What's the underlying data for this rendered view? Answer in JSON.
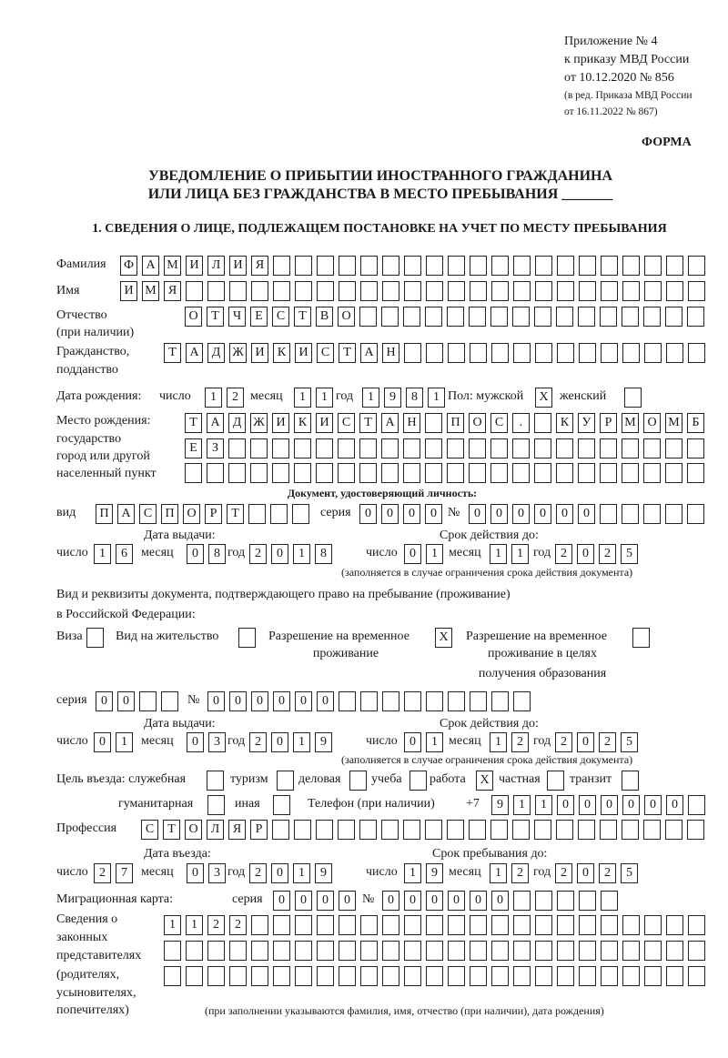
{
  "header": {
    "l1": "Приложение № 4",
    "l2": "к приказу МВД России",
    "l3": "от 10.12.2020 № 856",
    "l4": "(в ред. Приказа МВД России",
    "l5": "от 16.11.2022 № 867)",
    "forma": "ФОРМА",
    "title1": "УВЕДОМЛЕНИЕ О ПРИБЫТИИ ИНОСТРАННОГО ГРАЖДАНИНА",
    "title2": "ИЛИ ЛИЦА БЕЗ ГРАЖДАНСТВА В МЕСТО ПРЕБЫВАНИЯ _______",
    "section1": "1. СВЕДЕНИЯ О ЛИЦЕ, ПОДЛЕЖАЩЕМ ПОСТАНОВКЕ НА УЧЕТ ПО МЕСТУ ПРЕБЫВАНИЯ"
  },
  "labels": {
    "surname": "Фамилия",
    "name": "Имя",
    "patronymic": "Отчество",
    "patronymic_note": "(при наличии)",
    "citizenship": "Гражданство,",
    "citizenship2": "подданство",
    "birth_date": "Дата рождения:",
    "day": "число",
    "month": "месяц",
    "year": "год",
    "sex_male": "Пол: мужской",
    "sex_female": "женский",
    "birthplace1": "Место рождения:",
    "birthplace2": "государство",
    "birthplace3": "город или другой",
    "birthplace4": "населенный пункт",
    "id_doc": "Документ, удостоверяющий личность:",
    "doc_type": "вид",
    "series": "серия",
    "number": "№",
    "issue_date": "Дата выдачи:",
    "valid_until": "Срок действия до:",
    "valid_note": "(заполняется в случае ограничения срока действия документа)",
    "stay_doc1": "Вид и реквизиты документа, подтверждающего право на пребывание (проживание)",
    "stay_doc2": "в Российской Федерации:",
    "visa": "Виза",
    "residence": "Вид на жительство",
    "trp1": "Разрешение на временное",
    "trp2": "проживание",
    "trp_edu1": "Разрешение на временное",
    "trp_edu2": "проживание в целях",
    "trp_edu3": "получения образования",
    "purpose": "Цель въезда: служебная",
    "tourism": "туризм",
    "business": "деловая",
    "study": "учеба",
    "work": "работа",
    "private": "частная",
    "transit": "транзит",
    "humanitarian": "гуманитарная",
    "other": "иная",
    "phone": "Телефон (при наличии)",
    "phone_prefix": "+7",
    "profession": "Профессия",
    "entry_date": "Дата въезда:",
    "stay_until": "Срок пребывания до:",
    "migcard": "Миграционная карта:",
    "reps1": "Сведения о",
    "reps2": "законных",
    "reps3": "представителях",
    "reps4": "(родителях,",
    "reps5": "усыновителях,",
    "reps6": "попечителях)",
    "reps_note": "(при заполнении указываются фамилия, имя, отчество (при наличии), дата рождения)"
  },
  "fields": {
    "surname": "ФАМИЛИЯ",
    "name": "ИМЯ",
    "patronymic": "ОТЧЕСТВО",
    "citizenship": "ТАДЖИКИСТАН",
    "birth_day": "12",
    "birth_month": "11",
    "birth_year": "1981",
    "sex_male": "X",
    "sex_female": "",
    "birthplace_1": "ТАДЖИКИСТАН ПОС. КУРМОМБ",
    "birthplace_2": "ЕЗ",
    "birthplace_3": "",
    "doc_type": "ПАСПОРТ",
    "doc_series": "0000",
    "doc_number": "000000",
    "doc_issue_day": "16",
    "doc_issue_month": "08",
    "doc_issue_year": "2018",
    "doc_valid_day": "01",
    "doc_valid_month": "11",
    "doc_valid_year": "2025",
    "visa": "",
    "residence": "",
    "trp": "X",
    "trp_edu": "",
    "stay_series": "00",
    "stay_number": "000000",
    "stay_issue_day": "01",
    "stay_issue_month": "03",
    "stay_issue_year": "2019",
    "stay_valid_day": "01",
    "stay_valid_month": "12",
    "stay_valid_year": "2025",
    "purpose_service": "",
    "purpose_tourism": "",
    "purpose_business": "",
    "purpose_study": "",
    "purpose_work": "X",
    "purpose_private": "",
    "purpose_transit": "",
    "purpose_humanitarian": "",
    "purpose_other": "",
    "phone": "911000000",
    "profession": "СТОЛЯР",
    "entry_day": "27",
    "entry_month": "03",
    "entry_year": "2019",
    "until_day": "19",
    "until_month": "12",
    "until_year": "2025",
    "mig_series": "0000",
    "mig_number": "000000",
    "reps_1": "1122",
    "reps_2": "",
    "reps_3": ""
  }
}
